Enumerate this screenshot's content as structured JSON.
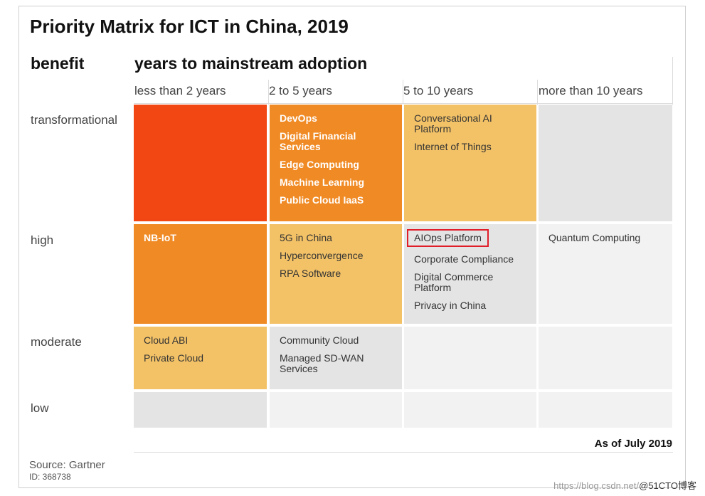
{
  "title": "Priority Matrix for ICT in China, 2019",
  "axes": {
    "benefit_label": "benefit",
    "adoption_label": "years to mainstream adoption"
  },
  "columns": [
    "less than 2 years",
    "2 to 5 years",
    "5 to 10 years",
    "more than 10 years"
  ],
  "rows": [
    "transformational",
    "high",
    "moderate",
    "low"
  ],
  "cells": {
    "r0c0": [],
    "r0c1": [
      "DevOps",
      "Digital Financial\nServices",
      "Edge Computing",
      "Machine Learning",
      "Public Cloud IaaS"
    ],
    "r0c2": [
      "Conversational AI\nPlatform",
      "Internet of Things"
    ],
    "r0c3": [],
    "r1c0": [
      "NB-IoT"
    ],
    "r1c1": [
      "5G in China",
      "Hyperconvergence",
      "RPA Software"
    ],
    "r1c2": [
      "AIOps Platform",
      "Corporate Compliance",
      "Digital Commerce\nPlatform",
      "Privacy in China"
    ],
    "r1c3": [
      "Quantum Computing"
    ],
    "r2c0": [
      "Cloud ABI",
      "Private Cloud"
    ],
    "r2c1": [
      "Community Cloud",
      "Managed SD-WAN\nServices"
    ],
    "r2c2": [],
    "r2c3": [],
    "r3c0": [],
    "r3c1": [],
    "r3c2": [],
    "r3c3": []
  },
  "colors": {
    "deep_orange": "#f24613",
    "orange": "#f08a24",
    "light_orange": "#f3c267",
    "gray": "#e4e4e4",
    "light_gray": "#f2f2f2",
    "highlight_box": "#e01e2a"
  },
  "highlighted_item": "AIOps Platform",
  "as_of": "As of July 2019",
  "source": "Source: Gartner",
  "id": "ID: 368738",
  "watermark": "https://blog.csdn.net/",
  "watermark_brand": "@51CTO博客"
}
